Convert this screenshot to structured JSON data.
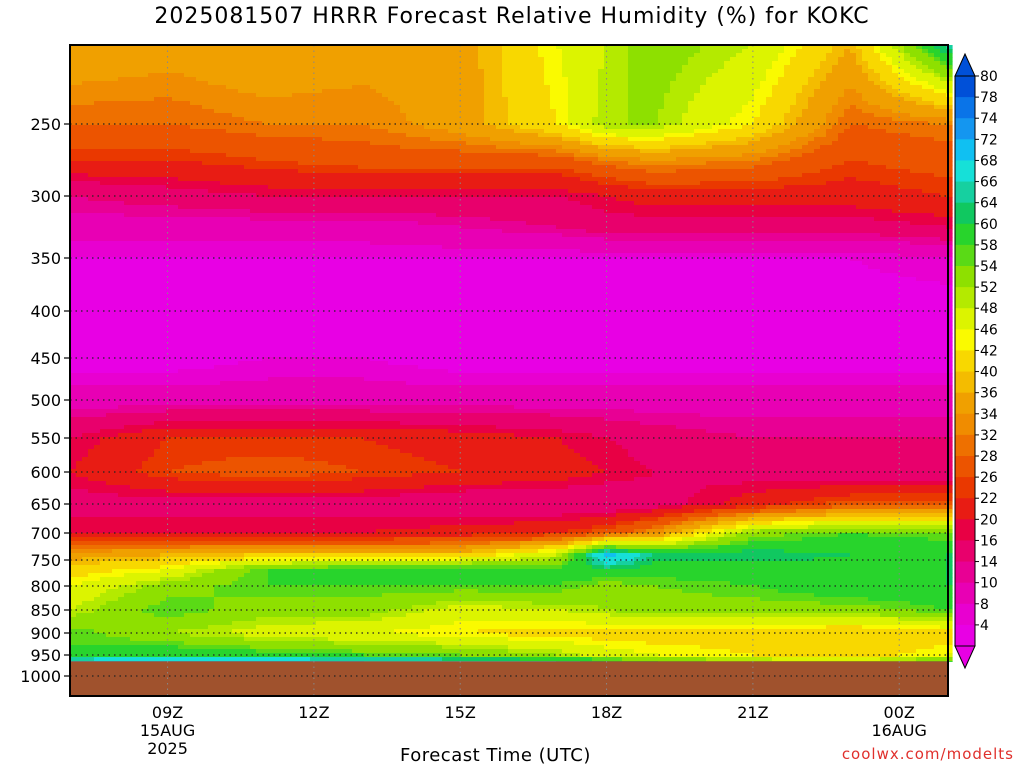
{
  "title": "2025081507 HRRR Forecast Relative Humidity (%) for KOKC",
  "credit": "coolwx.com/modelts",
  "chart_data": {
    "type": "heatmap",
    "title": "2025081507 HRRR Forecast Relative Humidity (%) for KOKC",
    "xlabel": "Forecast Time (UTC)",
    "ylabel": "",
    "x_ticks": [
      {
        "label": "09Z",
        "sub": [
          "15AUG",
          "2025"
        ],
        "hour": 9
      },
      {
        "label": "12Z",
        "sub": [],
        "hour": 12
      },
      {
        "label": "15Z",
        "sub": [],
        "hour": 15
      },
      {
        "label": "18Z",
        "sub": [],
        "hour": 18
      },
      {
        "label": "21Z",
        "sub": [],
        "hour": 21
      },
      {
        "label": "00Z",
        "sub": [
          "16AUG"
        ],
        "hour": 24
      }
    ],
    "xlim": [
      7,
      25
    ],
    "y_ticks": [
      250,
      300,
      350,
      400,
      450,
      500,
      550,
      600,
      650,
      700,
      750,
      800,
      850,
      900,
      950,
      1000
    ],
    "ylim": [
      1030,
      200
    ],
    "surface_pressure": 965,
    "grid": true,
    "colorbar_labels": [
      80,
      78,
      74,
      72,
      68,
      66,
      64,
      60,
      58,
      54,
      52,
      48,
      46,
      42,
      40,
      36,
      34,
      32,
      28,
      26,
      22,
      20,
      16,
      14,
      10,
      8,
      4
    ],
    "colorbar_colors": [
      "#0050d8",
      "#0a74e8",
      "#1496f0",
      "#10c0f2",
      "#16e0d8",
      "#16d0a0",
      "#10c860",
      "#28d42c",
      "#5ada16",
      "#8ee000",
      "#b4ea00",
      "#dcf400",
      "#fafa00",
      "#f8d800",
      "#f4bc00",
      "#f0a000",
      "#f08c00",
      "#ee7000",
      "#ec5400",
      "#ea3800",
      "#e81c14",
      "#e80044",
      "#e8006c",
      "#e80094",
      "#e800b4",
      "#e800d0",
      "#e800e4"
    ],
    "ground_color": "#a0522d",
    "hours": [
      7,
      9,
      11,
      13,
      15,
      17,
      18,
      19,
      21,
      23,
      25
    ],
    "pressures": [
      200,
      250,
      275,
      300,
      325,
      350,
      400,
      450,
      500,
      550,
      600,
      650,
      700,
      740,
      770,
      800,
      850,
      900,
      950,
      965
    ],
    "rh": [
      [
        40,
        38,
        40,
        38,
        38,
        48,
        52,
        56,
        52,
        40,
        68
      ],
      [
        32,
        32,
        34,
        34,
        38,
        46,
        54,
        54,
        46,
        32,
        34
      ],
      [
        26,
        26,
        28,
        30,
        30,
        30,
        34,
        36,
        34,
        28,
        30
      ],
      [
        16,
        18,
        20,
        20,
        20,
        20,
        22,
        24,
        24,
        24,
        26
      ],
      [
        12,
        12,
        12,
        12,
        14,
        16,
        18,
        18,
        18,
        18,
        20
      ],
      [
        8,
        8,
        8,
        8,
        8,
        8,
        8,
        8,
        8,
        8,
        10
      ],
      [
        6,
        6,
        6,
        6,
        6,
        6,
        6,
        6,
        6,
        6,
        6
      ],
      [
        6,
        6,
        8,
        8,
        6,
        6,
        6,
        6,
        6,
        6,
        6
      ],
      [
        12,
        12,
        12,
        12,
        12,
        12,
        12,
        12,
        12,
        12,
        12
      ],
      [
        20,
        26,
        26,
        26,
        24,
        22,
        20,
        18,
        16,
        16,
        16
      ],
      [
        22,
        28,
        30,
        28,
        26,
        24,
        22,
        20,
        18,
        16,
        16
      ],
      [
        18,
        18,
        18,
        18,
        16,
        16,
        16,
        18,
        24,
        30,
        30
      ],
      [
        22,
        22,
        22,
        22,
        24,
        26,
        30,
        36,
        56,
        60,
        58
      ],
      [
        38,
        40,
        42,
        42,
        42,
        52,
        74,
        66,
        66,
        64,
        64
      ],
      [
        44,
        48,
        60,
        64,
        64,
        62,
        64,
        62,
        62,
        62,
        64
      ],
      [
        48,
        56,
        60,
        60,
        60,
        60,
        56,
        58,
        60,
        64,
        64
      ],
      [
        52,
        60,
        56,
        56,
        50,
        52,
        54,
        56,
        56,
        56,
        60
      ],
      [
        60,
        54,
        50,
        48,
        46,
        44,
        44,
        44,
        44,
        42,
        44
      ],
      [
        60,
        64,
        62,
        60,
        58,
        54,
        50,
        48,
        46,
        44,
        48
      ],
      [
        72,
        72,
        72,
        72,
        70,
        68,
        64,
        60,
        56,
        54,
        60
      ]
    ]
  }
}
